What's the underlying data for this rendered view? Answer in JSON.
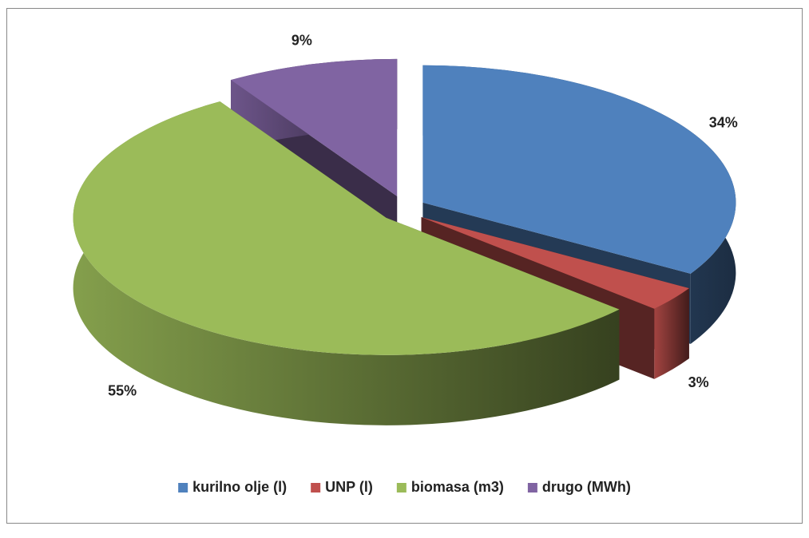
{
  "chart_data": {
    "type": "pie3d",
    "categories": [
      "kurilno olje (l)",
      "UNP (l)",
      "biomasa (m3)",
      "drugo (MWh)"
    ],
    "values": [
      34,
      3,
      55,
      9
    ],
    "value_labels": [
      "34%",
      "3%",
      "55%",
      "9%"
    ],
    "colors": [
      "#4f81bd",
      "#c0504d",
      "#9bbb59",
      "#8064a2"
    ],
    "legend": "bottom"
  }
}
